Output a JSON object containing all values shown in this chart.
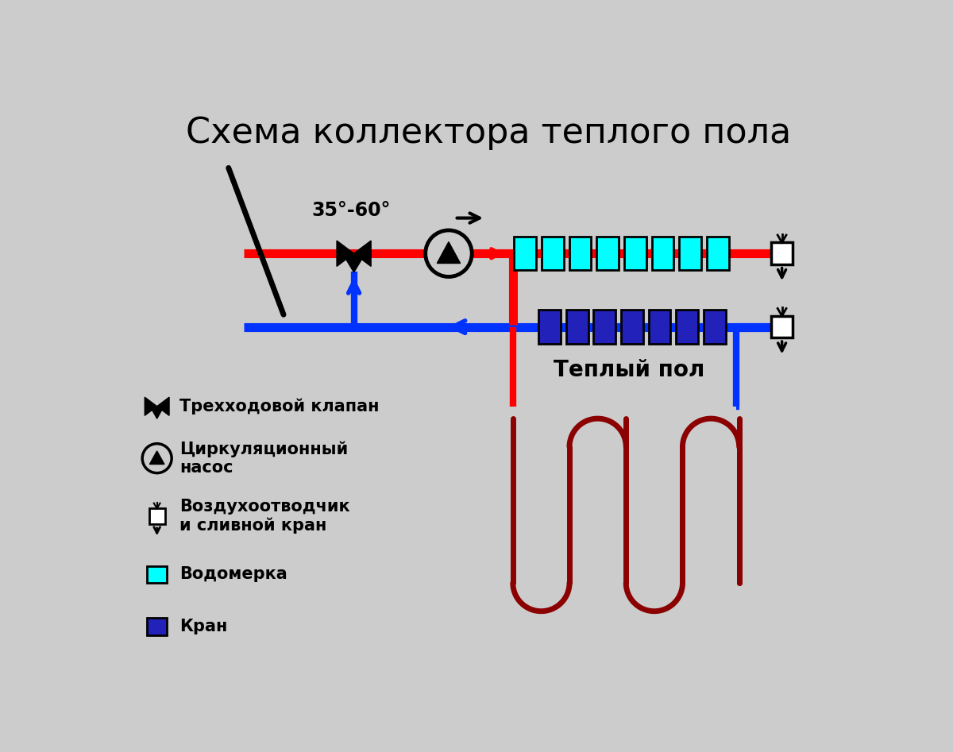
{
  "title": "Схема коллектора теплого пола",
  "bg_color": "#cccccc",
  "red_color": "#ff0000",
  "blue_color": "#0033ff",
  "dark_red_color": "#8b0000",
  "cyan_color": "#00ffff",
  "dark_blue_color": "#2222bb",
  "black_color": "#000000",
  "white_color": "#ffffff",
  "temp_label": "35°-60°",
  "teplo_label": "Теплый пол",
  "legend_valve": "Трехходовой клапан",
  "legend_pump": "Циркуляционный\nнасос",
  "legend_air": "Воздухоотводчик\nи сливной кран",
  "legend_cyan": "Водомерка",
  "legend_blue": "Кран",
  "lw_pipe": 8,
  "lw_loop": 5
}
